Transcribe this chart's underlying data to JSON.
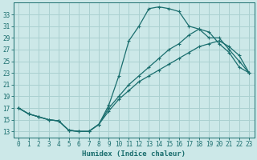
{
  "xlabel": "Humidex (Indice chaleur)",
  "bg_color": "#cce8e8",
  "grid_color": "#aad0d0",
  "line_color": "#1a6e6e",
  "xlim": [
    -0.5,
    23.5
  ],
  "ylim": [
    12,
    35
  ],
  "xticks": [
    0,
    1,
    2,
    3,
    4,
    5,
    6,
    7,
    8,
    9,
    10,
    11,
    12,
    13,
    14,
    15,
    16,
    17,
    18,
    19,
    20,
    21,
    22,
    23
  ],
  "yticks": [
    13,
    15,
    17,
    19,
    21,
    23,
    25,
    27,
    29,
    31,
    33
  ],
  "line1_x": [
    0,
    1,
    2,
    3,
    4,
    5,
    6,
    7,
    8,
    9,
    10,
    11,
    12,
    13,
    14,
    15,
    16,
    17,
    18,
    19,
    20,
    21,
    22,
    23
  ],
  "line1_y": [
    17.0,
    16.0,
    15.5,
    15.0,
    14.8,
    13.2,
    13.0,
    13.0,
    14.2,
    17.5,
    22.5,
    28.5,
    31.0,
    34.0,
    34.3,
    34.0,
    33.5,
    31.0,
    30.5,
    30.0,
    28.0,
    26.5,
    24.0,
    23.0
  ],
  "line2_x": [
    0,
    1,
    2,
    3,
    4,
    5,
    6,
    7,
    8,
    9,
    10,
    11,
    12,
    13,
    14,
    15,
    16,
    17,
    18,
    19,
    20,
    21,
    22,
    23
  ],
  "line2_y": [
    17.0,
    16.0,
    15.5,
    15.0,
    14.8,
    13.2,
    13.0,
    13.0,
    14.2,
    16.5,
    18.5,
    20.0,
    21.5,
    22.5,
    23.5,
    24.5,
    25.5,
    26.5,
    27.5,
    28.0,
    28.5,
    27.5,
    26.0,
    23.0
  ],
  "line3_x": [
    0,
    1,
    2,
    3,
    4,
    5,
    6,
    7,
    8,
    9,
    10,
    11,
    12,
    13,
    14,
    15,
    16,
    17,
    18,
    19,
    20,
    21,
    22,
    23
  ],
  "line3_y": [
    17.0,
    16.0,
    15.5,
    15.0,
    14.8,
    13.2,
    13.0,
    13.0,
    14.2,
    17.0,
    19.0,
    21.0,
    22.5,
    24.0,
    25.5,
    27.0,
    28.0,
    29.5,
    30.5,
    29.0,
    29.0,
    27.0,
    25.0,
    23.0
  ]
}
